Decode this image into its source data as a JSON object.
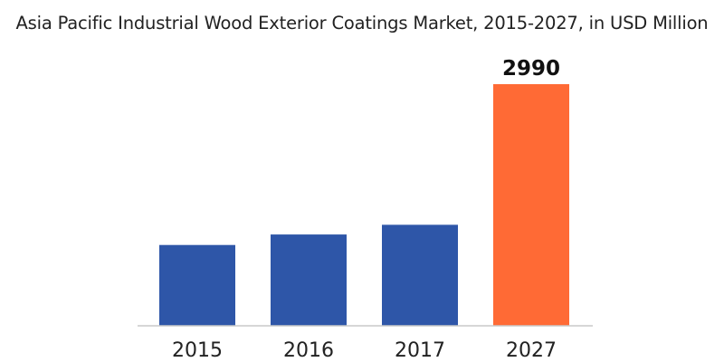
{
  "chart_data": {
    "type": "bar",
    "title": "Asia Pacific Industrial Wood Exterior Coatings Market, 2015-2027, in USD Million",
    "categories": [
      "2015",
      "2016",
      "2017",
      "2027"
    ],
    "values": [
      1000,
      1130,
      1250,
      2990
    ],
    "data_labels": [
      "",
      "",
      "",
      "2990"
    ],
    "colors": [
      "#2e56a8",
      "#2e56a8",
      "#2e56a8",
      "#ff6a35"
    ],
    "xlabel": "",
    "ylabel": "",
    "ylim": [
      0,
      2990
    ],
    "grid": false,
    "legend": "none"
  }
}
